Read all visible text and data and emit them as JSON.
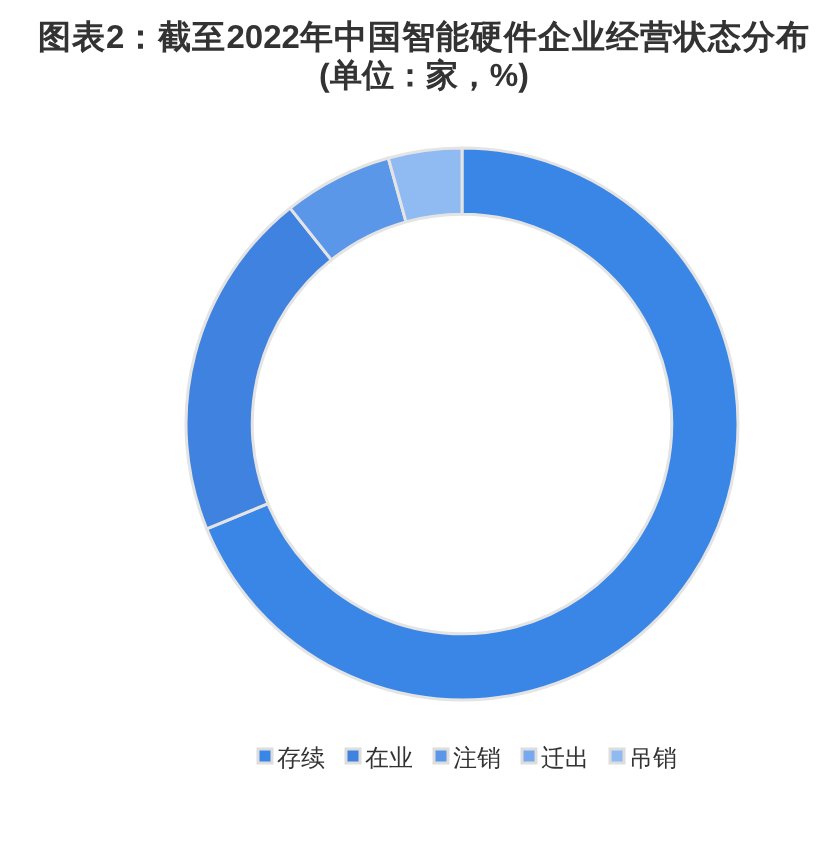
{
  "chart_data": {
    "type": "donut",
    "title": "图表2：截至2022年中国智能硬件企业经营状态分布",
    "subtitle": "(单位：家，%)",
    "categories": [
      "存续",
      "在业",
      "注销",
      "迁出",
      "吊销"
    ],
    "values": [
      68.8,
      20.5,
      6.4,
      0,
      4.3
    ],
    "colors": [
      "#3a86e6",
      "#3f82df",
      "#5b97e8",
      "#78a9ee",
      "#90baf2"
    ],
    "legend": "bottom"
  }
}
